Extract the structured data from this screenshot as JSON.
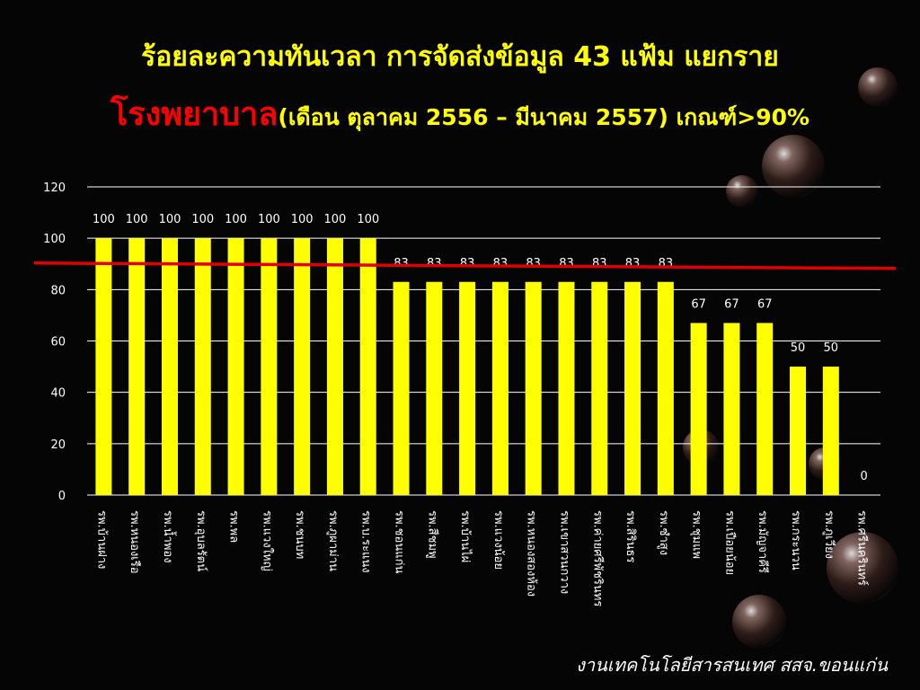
{
  "title": {
    "line1": "ร้อยละความทันเวลา การจัดส่งข้อมูล 43 แฟ้ม แยกราย",
    "line2_red": "โรงพยาบาล",
    "line2_rest": "(เดือน ตุลาคม 2556 – มีนาคม 2557) เกณฑ์>90%"
  },
  "footer": "งานเทคโนโลยีสารสนเทศ สสจ.ขอนแก่น",
  "colors": {
    "bar": "#ffff00",
    "threshold": "#e00000",
    "text": "#ffffff",
    "grid": "#ffffff"
  },
  "chart_data": {
    "type": "bar",
    "categories": [
      "รพ.บ้านฝาง",
      "รพ.หนองเรือ",
      "รพ.น้ำพอง",
      "รพ.อุบลรัตน์",
      "รพ.พล",
      "รพ.แวงใหญ่",
      "รพ.ชนบท",
      "รพ.ภูผาม่าน",
      "รพ.บ.ระแนง",
      "รพ.ชอนแก่น",
      "รพ.สีชมพู",
      "รพ.บ้านไผ่",
      "รพ.แวงน้อย",
      "รพ.หนองสองห้อง",
      "รพ.เขาสวนกวาง",
      "รพ.ค่ายศรีพัชรินทร",
      "รพ.สิรินธร",
      "รพ.ซำสูง",
      "รพ.ชุมแพ",
      "รพ.เปือยน้อย",
      "รพ.มัญจาคีรี",
      "รพ.กระนวน",
      "รพ.ภูเวียง",
      "รพ.ศรีนครินทร์"
    ],
    "values": [
      100,
      100,
      100,
      100,
      100,
      100,
      100,
      100,
      100,
      83,
      83,
      83,
      83,
      83,
      83,
      83,
      83,
      83,
      67,
      67,
      67,
      50,
      50,
      0
    ],
    "ylim": [
      0,
      120
    ],
    "yticks": [
      0,
      20,
      40,
      60,
      80,
      100,
      120
    ],
    "threshold": 90,
    "grid": true,
    "data_labels": true
  }
}
